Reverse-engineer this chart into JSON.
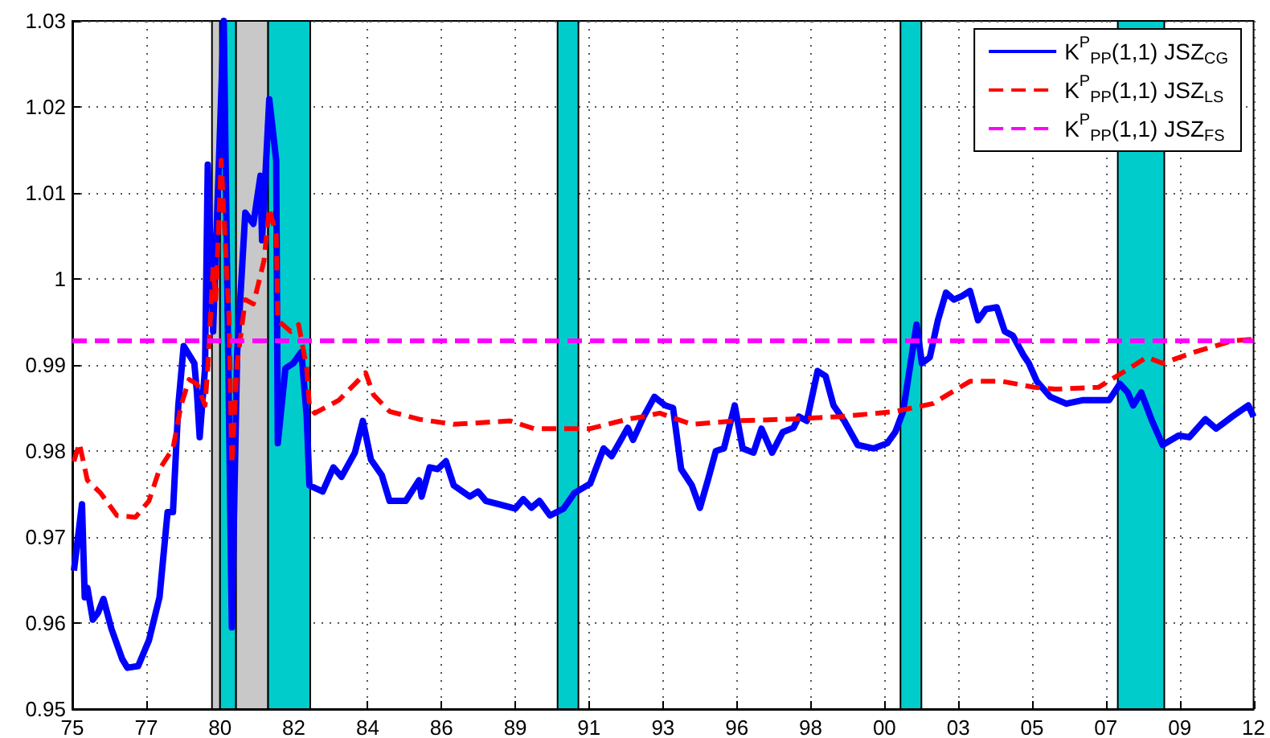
{
  "chart_data": {
    "type": "line",
    "xlim": [
      "1975-06-13",
      "2012-04-01"
    ],
    "ylim": [
      0.95,
      1.03
    ],
    "xticks": [
      {
        "value": "1975-06-13",
        "label": "75"
      },
      {
        "value": "1977-10-01",
        "label": "77"
      },
      {
        "value": "1980-01-19",
        "label": "80"
      },
      {
        "value": "1982-05-07",
        "label": "82"
      },
      {
        "value": "1984-08-25",
        "label": "84"
      },
      {
        "value": "1986-12-13",
        "label": "86"
      },
      {
        "value": "1989-04-01",
        "label": "89"
      },
      {
        "value": "1991-07-19",
        "label": "91"
      },
      {
        "value": "1993-11-07",
        "label": "93"
      },
      {
        "value": "1996-02-25",
        "label": "96"
      },
      {
        "value": "1998-06-13",
        "label": "98"
      },
      {
        "value": "2000-10-01",
        "label": "00"
      },
      {
        "value": "2003-01-19",
        "label": "03"
      },
      {
        "value": "2005-05-07",
        "label": "05"
      },
      {
        "value": "2007-08-25",
        "label": "07"
      },
      {
        "value": "2009-12-13",
        "label": "09"
      },
      {
        "value": "2012-04-01",
        "label": "12"
      }
    ],
    "yticks": [
      0.95,
      0.96,
      0.97,
      0.98,
      0.99,
      1,
      1.01,
      1.02,
      1.03
    ],
    "grid": true,
    "legend": "top right",
    "marker": "none",
    "bands": [
      {
        "axis": "x",
        "from": "1979-10-19",
        "to": "1980-01-19",
        "color": "#c8c8c8"
      },
      {
        "axis": "x",
        "from": "1980-01-19",
        "to": "1980-07-19",
        "color": "#00cccc"
      },
      {
        "axis": "x",
        "from": "1980-07-19",
        "to": "1981-07-19",
        "color": "#c8c8c8"
      },
      {
        "axis": "x",
        "from": "1981-07-19",
        "to": "1982-11-10",
        "color": "#00cccc"
      },
      {
        "axis": "x",
        "from": "1990-07-26",
        "to": "1991-03-20",
        "color": "#00cccc"
      },
      {
        "axis": "x",
        "from": "2001-04-01",
        "to": "2001-11-25",
        "color": "#00cccc"
      },
      {
        "axis": "x",
        "from": "2008-01-08",
        "to": "2009-06-20",
        "color": "#00cccc"
      }
    ],
    "series": [
      {
        "name": "K$^{P}$$_{PP}$(1,1) JSZ$_{CG}$",
        "color": "#0000ff",
        "line_style": "solid",
        "x": [
          "1975-07",
          "1975-10",
          "1975-11",
          "1975-12",
          "1976-02",
          "1976-04",
          "1976-06",
          "1976-09",
          "1977-01",
          "1977-03",
          "1977-07",
          "1977-11",
          "1978-03",
          "1978-06",
          "1978-08",
          "1978-10",
          "1978-12",
          "1979-04",
          "1979-05",
          "1979-06",
          "1979-08",
          "1979-09",
          "1979-11",
          "1980-03",
          "1980-06",
          "1980-08",
          "1980-11",
          "1981-02",
          "1981-04-23",
          "1981-05-11",
          "1981-08",
          "1981-10-19",
          "1981-11-06",
          "1982-02",
          "1982-05",
          "1982-08",
          "1982-10",
          "1982-11",
          "1983-04",
          "1983-08",
          "1983-11",
          "1984-04",
          "1984-07",
          "1984-10",
          "1985-02",
          "1985-05",
          "1985-11",
          "1986-04",
          "1986-05",
          "1986-08",
          "1986-11",
          "1987-02",
          "1987-05",
          "1987-11",
          "1988-02",
          "1988-05",
          "1988-10",
          "1989-04",
          "1989-07",
          "1989-10",
          "1990-01",
          "1990-05",
          "1990-10",
          "1991-02",
          "1991-08",
          "1992-01",
          "1992-04",
          "1992-10",
          "1992-12",
          "1993-04",
          "1993-08",
          "1993-12",
          "1994-03",
          "1994-06",
          "1994-10",
          "1995-01",
          "1995-04",
          "1995-07",
          "1995-10",
          "1996-02",
          "1996-05",
          "1996-09",
          "1996-12",
          "1997-04",
          "1997-08",
          "1997-12",
          "1998-02",
          "1998-05",
          "1998-09",
          "1998-12",
          "1999-03",
          "1999-07",
          "1999-12",
          "2000-06",
          "2000-11",
          "2001-02",
          "2001-05",
          "2001-10",
          "2001-12",
          "2002-03",
          "2002-06",
          "2002-09",
          "2002-12",
          "2003-03",
          "2003-06",
          "2003-09",
          "2003-12",
          "2004-04",
          "2004-07",
          "2004-10",
          "2005-02",
          "2005-04",
          "2005-07",
          "2005-12",
          "2006-06",
          "2006-12",
          "2007-10",
          "2008-02",
          "2008-05",
          "2008-07",
          "2008-10",
          "2009-02",
          "2009-06",
          "2009-12",
          "2010-04",
          "2010-10",
          "2011-02",
          "2011-08",
          "2012-02",
          "2012-04"
        ],
        "values": [
          0.9661,
          0.9738,
          0.963,
          0.9641,
          0.9604,
          0.9612,
          0.9628,
          0.9593,
          0.9558,
          0.9548,
          0.955,
          0.958,
          0.963,
          0.9729,
          0.9729,
          0.9853,
          0.9922,
          0.9902,
          0.9868,
          0.9816,
          0.9896,
          1.0133,
          0.9939,
          1.03,
          0.9595,
          0.9915,
          1.0077,
          1.0064,
          1.012,
          1.0045,
          1.0209,
          1.0138,
          0.9809,
          0.9896,
          0.9902,
          0.9915,
          0.984,
          0.976,
          0.9753,
          0.9781,
          0.977,
          0.9798,
          0.9835,
          0.979,
          0.9772,
          0.9742,
          0.9742,
          0.9766,
          0.9747,
          0.9781,
          0.9779,
          0.9788,
          0.976,
          0.9747,
          0.9753,
          0.9742,
          0.9738,
          0.9733,
          0.9744,
          0.9734,
          0.9742,
          0.9725,
          0.9733,
          0.9751,
          0.9762,
          0.9803,
          0.9794,
          0.9827,
          0.9813,
          0.984,
          0.9863,
          0.9853,
          0.985,
          0.9779,
          0.976,
          0.9734,
          0.9766,
          0.98,
          0.9803,
          0.9853,
          0.9803,
          0.9798,
          0.9826,
          0.9798,
          0.9822,
          0.9827,
          0.984,
          0.9835,
          0.9893,
          0.9887,
          0.9853,
          0.9835,
          0.9807,
          0.9803,
          0.9809,
          0.9822,
          0.9846,
          0.9947,
          0.9902,
          0.9909,
          0.9952,
          0.9984,
          0.9976,
          0.998,
          0.9986,
          0.9952,
          0.9965,
          0.9967,
          0.9939,
          0.9934,
          0.9911,
          0.9902,
          0.9881,
          0.9863,
          0.9855,
          0.9859,
          0.9859,
          0.9878,
          0.9868,
          0.9853,
          0.9868,
          0.9835,
          0.9807,
          0.9818,
          0.9816,
          0.9837,
          0.9826,
          0.984,
          0.9853,
          0.984
        ]
      },
      {
        "name": "K$^{P}$$_{PP}$(1,1) JSZ$_{LS}$",
        "color": "#ff0000",
        "line_style": "dashed",
        "x": [
          "1975-07",
          "1975-09",
          "1975-12",
          "1976-05",
          "1976-11",
          "1977-06",
          "1977-11",
          "1978-03",
          "1978-08",
          "1978-11",
          "1979-02",
          "1979-05",
          "1979-08",
          "1979-09",
          "1979-11",
          "1979-12",
          "1980-02",
          "1980-05",
          "1980-06",
          "1980-08",
          "1980-11",
          "1981-02",
          "1981-04",
          "1981-06",
          "1981-08",
          "1981-10-19",
          "1981-11-06",
          "1982-04",
          "1982-07",
          "1982-10",
          "1982-11",
          "1983-01",
          "1983-10",
          "1984-04",
          "1984-08",
          "1984-11",
          "1985-05",
          "1986-04",
          "1987-05",
          "1989-02",
          "1989-11",
          "1991-08",
          "1992-10",
          "1993-04",
          "1993-10",
          "1994-10",
          "1996-02",
          "1997-10",
          "1999-06",
          "2001-02",
          "2002-04",
          "2003-06",
          "2004-06",
          "2005-06",
          "2006-02",
          "2007-06",
          "2008-04",
          "2008-12",
          "2009-06",
          "2010-06",
          "2011-08",
          "2012-04"
        ],
        "values": [
          0.9788,
          0.9809,
          0.9766,
          0.9751,
          0.9725,
          0.9723,
          0.9742,
          0.9779,
          0.9803,
          0.9853,
          0.9883,
          0.9878,
          0.9853,
          0.9896,
          1.0014,
          0.9976,
          1.0138,
          0.9952,
          0.9785,
          0.9902,
          0.9976,
          0.9971,
          0.9995,
          1.0021,
          1.0082,
          1.0051,
          0.9952,
          0.9939,
          0.9947,
          0.9896,
          0.9853,
          0.9844,
          0.9859,
          0.9878,
          0.9891,
          0.9865,
          0.9846,
          0.9837,
          0.9831,
          0.9835,
          0.9826,
          0.9826,
          0.9837,
          0.984,
          0.9844,
          0.9831,
          0.9835,
          0.9837,
          0.984,
          0.9846,
          0.9855,
          0.9881,
          0.9881,
          0.9874,
          0.9872,
          0.9874,
          0.9893,
          0.9909,
          0.9902,
          0.9915,
          0.9928,
          0.993
        ]
      },
      {
        "name": "K$^{P}$$_{PP}$(1,1) JSZ$_{FS}$",
        "color": "#ff00ff",
        "line_style": "dashed",
        "x": [
          "1975-06-13",
          "2012-04-01"
        ],
        "values": [
          0.9928,
          0.9928
        ]
      }
    ]
  }
}
